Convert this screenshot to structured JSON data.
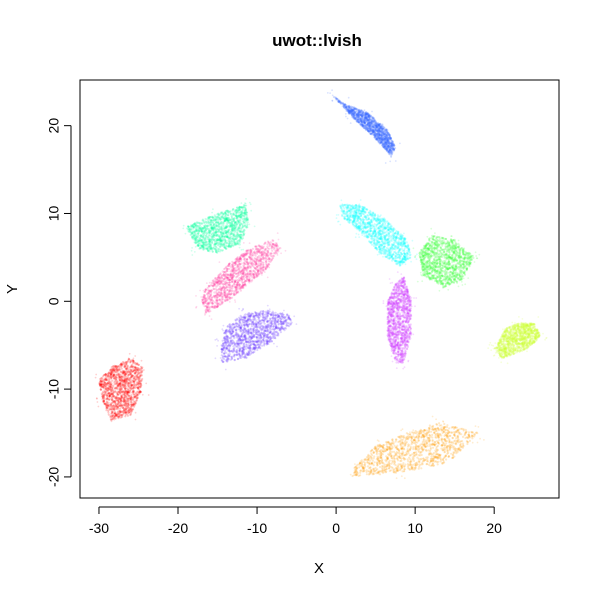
{
  "chart_data": {
    "type": "scatter",
    "title": "uwot::lvish",
    "xlabel": "X",
    "ylabel": "Y",
    "xlim": [
      -32.4,
      28.2
    ],
    "ylim": [
      -22.4,
      25.2
    ],
    "x_ticks": [
      -30,
      -20,
      -10,
      0,
      10,
      20
    ],
    "y_ticks": [
      -20,
      -10,
      0,
      10,
      20
    ],
    "grid": false,
    "legend": "none",
    "clusters": [
      {
        "color": "#ff0000",
        "polygon": [
          [
            -29.5,
            -11.5
          ],
          [
            -28.5,
            -13.5
          ],
          [
            -26,
            -13
          ],
          [
            -24.5,
            -10
          ],
          [
            -24.5,
            -7.5
          ],
          [
            -26,
            -6.5
          ],
          [
            -28.5,
            -7.5
          ],
          [
            -30,
            -9
          ]
        ]
      },
      {
        "color": "#ff9900",
        "polygon": [
          [
            2,
            -20
          ],
          [
            8,
            -19.5
          ],
          [
            14,
            -18.5
          ],
          [
            17.5,
            -15.5
          ],
          [
            18,
            -15
          ],
          [
            13,
            -13.8
          ],
          [
            9,
            -15
          ],
          [
            5,
            -16.5
          ],
          [
            2.2,
            -19
          ]
        ]
      },
      {
        "color": "#3366ff",
        "polygon": [
          [
            -0.5,
            23.5
          ],
          [
            2,
            21
          ],
          [
            5,
            18.5
          ],
          [
            7,
            16.5
          ],
          [
            7.5,
            17.5
          ],
          [
            6.5,
            19.5
          ],
          [
            4,
            21.5
          ],
          [
            1,
            22.5
          ]
        ]
      },
      {
        "color": "#00ff99",
        "polygon": [
          [
            -19,
            8.5
          ],
          [
            -15,
            10
          ],
          [
            -11.5,
            11
          ],
          [
            -11,
            9
          ],
          [
            -12,
            6.5
          ],
          [
            -15,
            5.5
          ],
          [
            -17.5,
            6
          ]
        ]
      },
      {
        "color": "#ff3399",
        "polygon": [
          [
            -16.5,
            -1.5
          ],
          [
            -13,
            0.5
          ],
          [
            -9,
            3.5
          ],
          [
            -7,
            6
          ],
          [
            -8,
            7
          ],
          [
            -11,
            6
          ],
          [
            -14,
            4
          ],
          [
            -16.5,
            1.5
          ],
          [
            -17,
            0
          ]
        ]
      },
      {
        "color": "#6633ff",
        "polygon": [
          [
            -14.5,
            -7
          ],
          [
            -11.5,
            -6.5
          ],
          [
            -8,
            -4.5
          ],
          [
            -5.5,
            -2.5
          ],
          [
            -6,
            -1.5
          ],
          [
            -9,
            -1
          ],
          [
            -12,
            -1.5
          ],
          [
            -14,
            -3
          ],
          [
            -14.5,
            -5
          ]
        ]
      },
      {
        "color": "#00ffff",
        "polygon": [
          [
            0.5,
            11
          ],
          [
            3,
            11
          ],
          [
            6,
            9.5
          ],
          [
            9,
            7
          ],
          [
            9.5,
            5
          ],
          [
            8,
            4
          ],
          [
            5.5,
            5.5
          ],
          [
            3,
            8
          ],
          [
            0.8,
            9.5
          ]
        ]
      },
      {
        "color": "#33ff33",
        "polygon": [
          [
            10.5,
            5.5
          ],
          [
            12,
            7.5
          ],
          [
            15,
            7
          ],
          [
            17.5,
            5
          ],
          [
            16,
            2.5
          ],
          [
            13.5,
            1.5
          ],
          [
            11,
            3
          ]
        ]
      },
      {
        "color": "#cc33ff",
        "polygon": [
          [
            8.5,
            3
          ],
          [
            9.5,
            0
          ],
          [
            9.5,
            -4
          ],
          [
            8.5,
            -7
          ],
          [
            7.5,
            -7
          ],
          [
            6.5,
            -4
          ],
          [
            6.5,
            0
          ],
          [
            7.5,
            2
          ]
        ]
      },
      {
        "color": "#ccff33",
        "polygon": [
          [
            20,
            -5.5
          ],
          [
            21,
            -6.5
          ],
          [
            24,
            -5.5
          ],
          [
            26,
            -4
          ],
          [
            25,
            -2.5
          ],
          [
            23,
            -2.5
          ],
          [
            21.5,
            -3
          ]
        ]
      }
    ]
  }
}
